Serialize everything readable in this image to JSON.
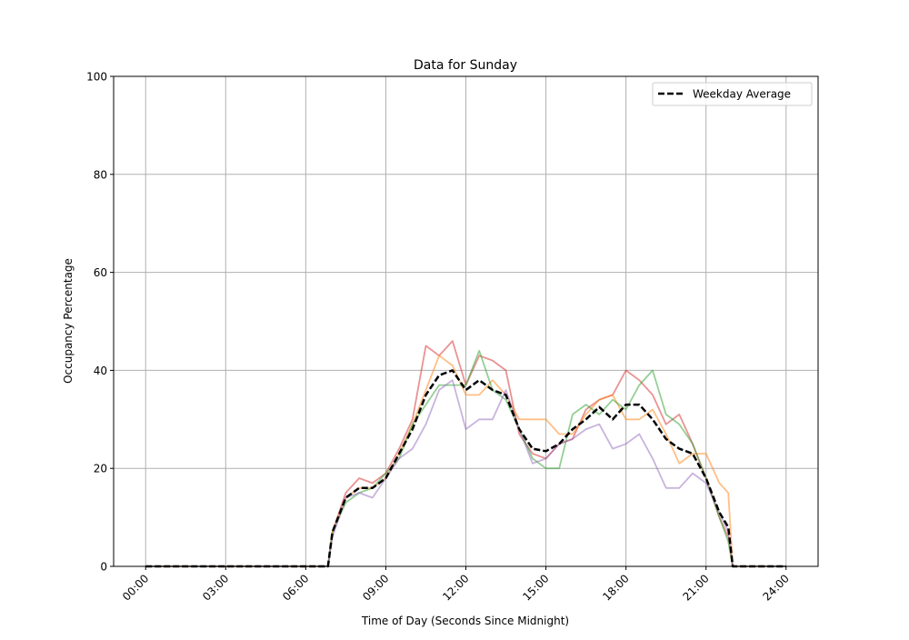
{
  "chart_data": {
    "type": "line",
    "title": "Data for Sunday",
    "xlabel": "Time of Day (Seconds Since Midnight)",
    "ylabel": "Occupancy Percentage",
    "ylim": [
      0,
      100
    ],
    "xlim": [
      "00:00",
      "24:00"
    ],
    "grid": true,
    "legend_position": "top-right",
    "x_ticks": [
      "00:00",
      "03:00",
      "06:00",
      "09:00",
      "12:00",
      "15:00",
      "18:00",
      "21:00",
      "24:00"
    ],
    "y_ticks": [
      0,
      20,
      40,
      60,
      80,
      100
    ],
    "x": [
      "00:00",
      "06:50",
      "07:00",
      "07:30",
      "08:00",
      "08:30",
      "09:00",
      "09:30",
      "10:00",
      "10:30",
      "11:00",
      "11:30",
      "12:00",
      "12:30",
      "13:00",
      "13:30",
      "14:00",
      "14:30",
      "15:00",
      "15:30",
      "16:00",
      "16:30",
      "17:00",
      "17:30",
      "18:00",
      "18:30",
      "19:00",
      "19:30",
      "20:00",
      "20:30",
      "21:00",
      "21:30",
      "21:50",
      "22:00",
      "24:00"
    ],
    "series": [
      {
        "color": "#d62728",
        "style": "solid",
        "values": [
          0,
          0,
          7,
          15,
          18,
          17,
          19,
          24,
          30,
          45,
          43,
          46,
          37,
          43,
          42,
          40,
          27,
          23,
          22,
          25,
          26,
          32,
          34,
          35,
          40,
          38,
          35,
          29,
          31,
          25,
          18,
          10,
          6,
          0,
          0
        ]
      },
      {
        "color": "#ff7f0e",
        "style": "solid",
        "values": [
          0,
          0,
          7,
          14,
          16,
          16,
          18,
          23,
          29,
          36,
          43,
          41,
          35,
          35,
          38,
          35,
          30,
          30,
          30,
          27,
          27,
          31,
          34,
          35,
          30,
          30,
          32,
          27,
          21,
          23,
          23,
          17,
          15,
          0,
          0
        ]
      },
      {
        "color": "#2ca02c",
        "style": "solid",
        "values": [
          0,
          0,
          7,
          13,
          15,
          16,
          19,
          22,
          29,
          33,
          37,
          37,
          37,
          44,
          36,
          34,
          28,
          22,
          20,
          20,
          31,
          33,
          31,
          34,
          32,
          37,
          40,
          31,
          29,
          25,
          18,
          10,
          5,
          0,
          0
        ]
      },
      {
        "color": "#9467bd",
        "style": "solid",
        "values": [
          0,
          0,
          6,
          14,
          15,
          14,
          18,
          22,
          24,
          29,
          36,
          38,
          28,
          30,
          30,
          36,
          28,
          21,
          22,
          25,
          26,
          28,
          29,
          24,
          25,
          27,
          22,
          16,
          16,
          19,
          17,
          11,
          7,
          0,
          0
        ]
      },
      {
        "name": "Weekday Average",
        "color": "#000000",
        "style": "dashed",
        "values": [
          0,
          0,
          7,
          14,
          16,
          16,
          18,
          23,
          28,
          35,
          39,
          40,
          36,
          38,
          36,
          35,
          28,
          24,
          23.5,
          25,
          28,
          30,
          32.5,
          30,
          33,
          33,
          30,
          26,
          24,
          23,
          18,
          11,
          8,
          0,
          0
        ]
      }
    ]
  }
}
